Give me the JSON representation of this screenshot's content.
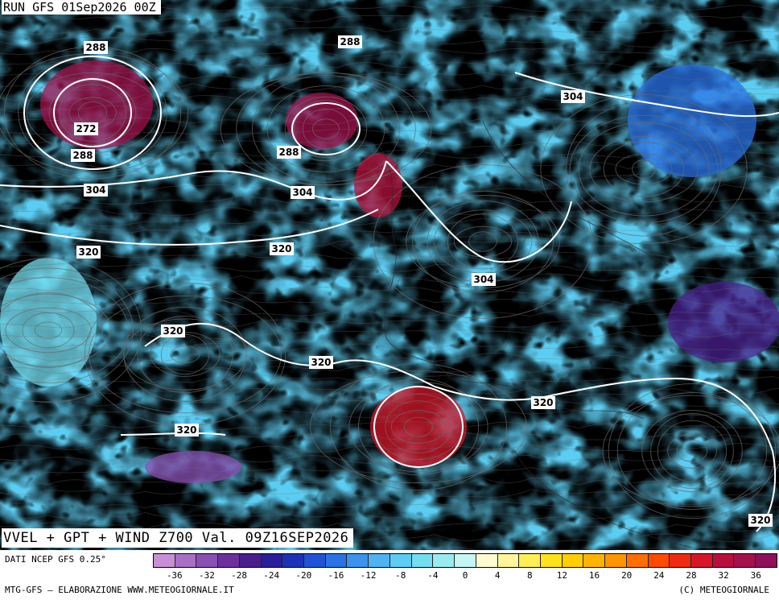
{
  "run_label": "RUN GFS 01Sep2026 00Z",
  "map_title": "VVEL + GPT + WIND Z700 Val. 09Z16SEP2026",
  "data_source": "DATI NCEP GFS 0.25°",
  "credit_left": "MTG-GFS – ELABORAZIONE WWW.METEOGIORNALE.IT",
  "credit_right": "(C) METEOGIORNALE",
  "contour_labels": [
    {
      "text": "288"
    },
    {
      "text": "288"
    },
    {
      "text": "272"
    },
    {
      "text": "288"
    },
    {
      "text": "304"
    },
    {
      "text": "288"
    },
    {
      "text": "304"
    },
    {
      "text": "304"
    },
    {
      "text": "320"
    },
    {
      "text": "320"
    },
    {
      "text": "304"
    },
    {
      "text": "320"
    },
    {
      "text": "320"
    },
    {
      "text": "320"
    },
    {
      "text": "320"
    },
    {
      "text": "320"
    }
  ],
  "color_scale": {
    "colors": [
      "#c98fd6",
      "#a870c4",
      "#8a4fb2",
      "#6b2f9e",
      "#4a1f8c",
      "#2a1f9a",
      "#1c33b8",
      "#1f52d6",
      "#2a72e6",
      "#3b93ee",
      "#4fb3f2",
      "#5ccdf2",
      "#74def0",
      "#98ecf0",
      "#c4f6f4",
      "#fffbd0",
      "#fff59a",
      "#ffee55",
      "#ffe21a",
      "#ffcf00",
      "#ffb400",
      "#ff9500",
      "#ff6e00",
      "#ff4a00",
      "#ef2a10",
      "#d61628",
      "#b80f3a",
      "#a3104c",
      "#8e1058"
    ],
    "tick_labels": [
      "-36",
      "-32",
      "-28",
      "-24",
      "-20",
      "-16",
      "-12",
      "-8",
      "-4",
      "0",
      "4",
      "8",
      "12",
      "16",
      "20",
      "24",
      "28",
      "32",
      "36"
    ]
  }
}
